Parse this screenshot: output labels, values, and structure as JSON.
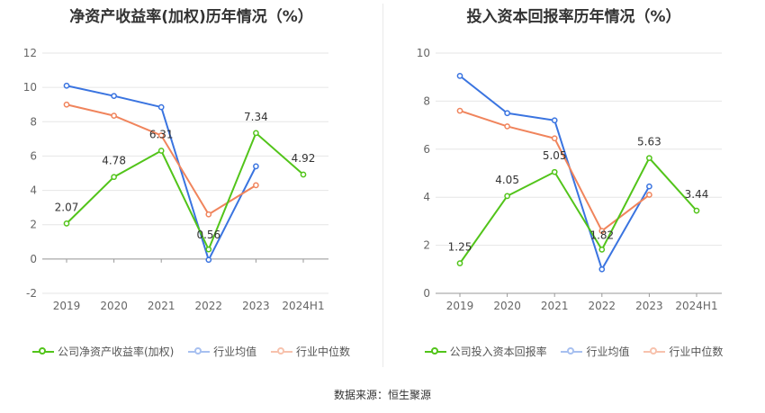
{
  "colors": {
    "company": "#52c41a",
    "avg": "#3a74e0",
    "median": "#f0845c"
  },
  "source_text": "数据来源：恒生聚源",
  "chart_data": [
    {
      "type": "line",
      "title": "净资产收益率(加权)历年情况（%）",
      "categories": [
        "2019",
        "2020",
        "2021",
        "2022",
        "2023",
        "2024H1"
      ],
      "ylim": [
        -2,
        12
      ],
      "yticks": [
        -2,
        0,
        2,
        4,
        6,
        8,
        10,
        12
      ],
      "grid": true,
      "legend_position": "bottom",
      "series": [
        {
          "name": "公司净资产收益率(加权)",
          "key": "company",
          "values": [
            2.07,
            4.78,
            6.31,
            0.56,
            7.34,
            4.92
          ],
          "labels": [
            "2.07",
            "4.78",
            "6.31",
            "0.56",
            "7.34",
            "4.92"
          ]
        },
        {
          "name": "行业均值",
          "key": "avg",
          "values": [
            10.1,
            9.5,
            8.85,
            -0.05,
            5.4,
            null
          ]
        },
        {
          "name": "行业中位数",
          "key": "median",
          "values": [
            9.0,
            8.35,
            7.2,
            2.6,
            4.3,
            null
          ]
        }
      ]
    },
    {
      "type": "line",
      "title": "投入资本回报率历年情况（%）",
      "categories": [
        "2019",
        "2020",
        "2021",
        "2022",
        "2023",
        "2024H1"
      ],
      "ylim": [
        0,
        10
      ],
      "yticks": [
        0,
        2,
        4,
        6,
        8,
        10
      ],
      "grid": true,
      "legend_position": "bottom",
      "series": [
        {
          "name": "公司投入资本回报率",
          "key": "company",
          "values": [
            1.25,
            4.05,
            5.05,
            1.82,
            5.63,
            3.44
          ],
          "labels": [
            "1.25",
            "4.05",
            "5.05",
            "1.82",
            "5.63",
            "3.44"
          ]
        },
        {
          "name": "行业均值",
          "key": "avg",
          "values": [
            9.05,
            7.5,
            7.2,
            1.0,
            4.45,
            null
          ]
        },
        {
          "name": "行业中位数",
          "key": "median",
          "values": [
            7.6,
            6.95,
            6.45,
            2.6,
            4.1,
            null
          ]
        }
      ]
    }
  ]
}
